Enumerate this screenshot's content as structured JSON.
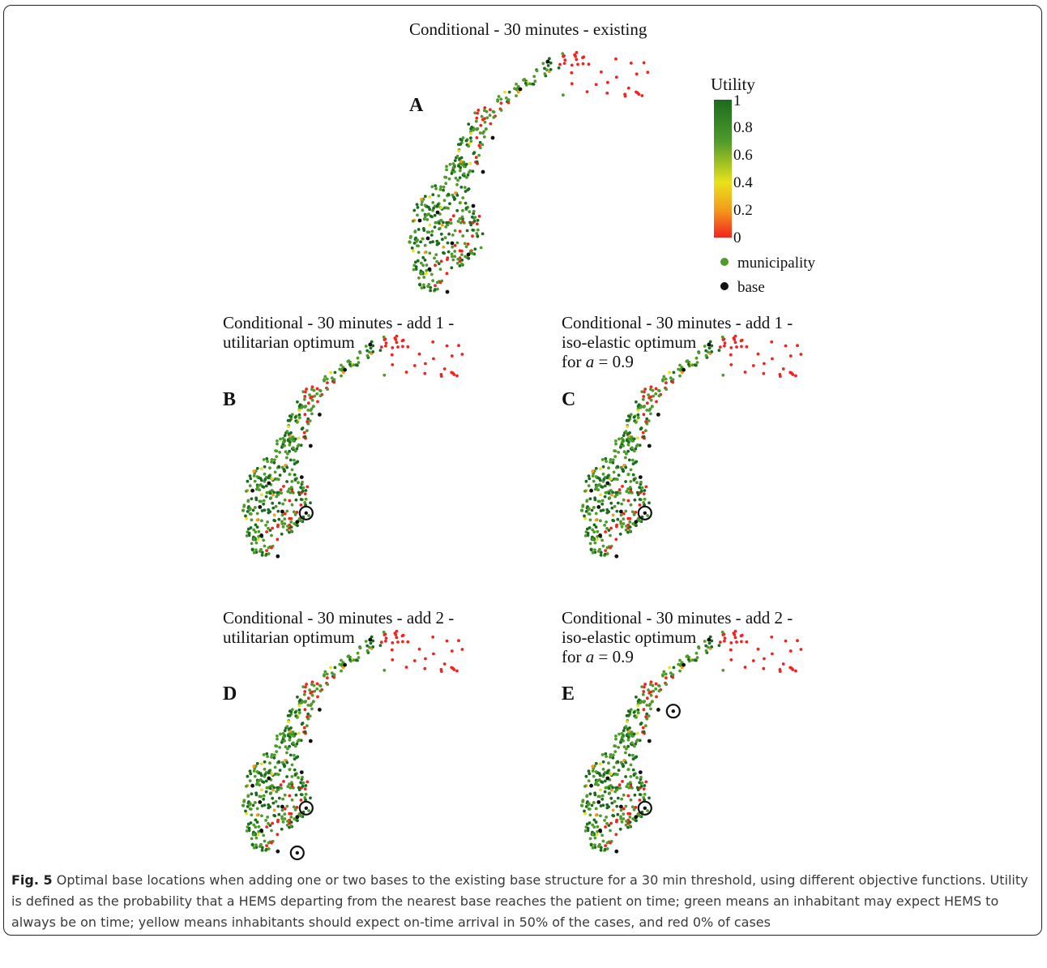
{
  "colors": {
    "utility_high": "#1b6b1f",
    "utility_mid_high": "#4f9a2c",
    "utility_mid": "#e8e21c",
    "utility_low": "#f39b1c",
    "utility_zero": "#f2231f",
    "base": "#111111",
    "frame": "#222222"
  },
  "panels": [
    {
      "id": "A",
      "letter": "A",
      "title_lines": [
        "Conditional - 30 minutes - existing"
      ],
      "new_bases": []
    },
    {
      "id": "B",
      "letter": "B",
      "title_lines": [
        "Conditional - 30 minutes - add 1 -",
        "utilitarian optimum"
      ],
      "new_bases": [
        "southeast"
      ]
    },
    {
      "id": "C",
      "letter": "C",
      "title_lines": [
        "Conditional - 30 minutes - add 1 -",
        "iso-elastic optimum"
      ],
      "title_a_line": {
        "prefix": "for ",
        "var": "a",
        "suffix": " = 0.9"
      },
      "new_bases": [
        "southeast"
      ]
    },
    {
      "id": "D",
      "letter": "D",
      "title_lines": [
        "Conditional - 30 minutes - add 2 -",
        "utilitarian optimum"
      ],
      "new_bases": [
        "southeast",
        "south"
      ]
    },
    {
      "id": "E",
      "letter": "E",
      "title_lines": [
        "Conditional - 30 minutes - add 2 -",
        "iso-elastic optimum"
      ],
      "title_a_line": {
        "prefix": "for ",
        "var": "a",
        "suffix": " = 0.9"
      },
      "new_bases": [
        "southeast",
        "north"
      ]
    }
  ],
  "legend": {
    "title": "Utility",
    "ticks": [
      "1",
      "0.8",
      "0.6",
      "0.4",
      "0.2",
      "0"
    ],
    "items": [
      {
        "label": "municipality",
        "color": "#4f9a2c"
      },
      {
        "label": "base",
        "color": "#111111"
      }
    ]
  },
  "caption": {
    "label": "Fig. 5",
    "text": " Optimal base locations when adding one or two bases to the existing base structure for a 30 min threshold, using different objective functions. Utility is defined as the probability that a HEMS departing from the nearest base reaches the patient on time; green means an inhabitant may expect HEMS to always be on time; yellow means inhabitants should expect on-time arrival in 50% of the cases, and red 0% of cases"
  }
}
